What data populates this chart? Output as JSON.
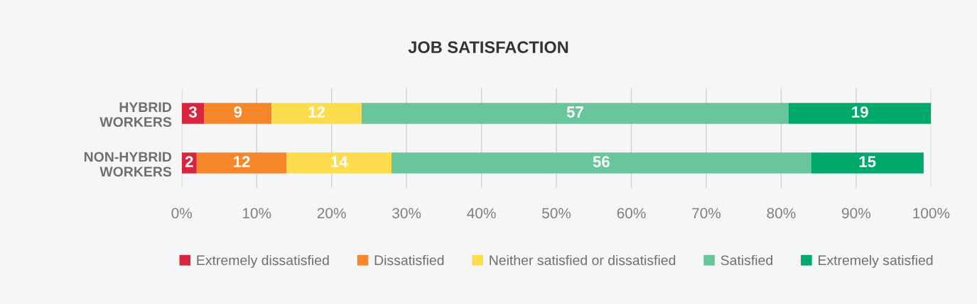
{
  "chart_data": {
    "type": "bar",
    "title": "JOB SATISFACTION",
    "orientation": "horizontal",
    "stacked": true,
    "categories": [
      "HYBRID\nWORKERS",
      "NON-HYBRID\nWORKERS"
    ],
    "series": [
      {
        "name": "Extremely dissatisfied",
        "color": "#d7263d",
        "values": [
          3,
          2
        ]
      },
      {
        "name": "Dissatisfied",
        "color": "#f5862a",
        "values": [
          9,
          12
        ]
      },
      {
        "name": "Neither satisfied or dissatisfied",
        "color": "#fddc4e",
        "values": [
          12,
          14
        ]
      },
      {
        "name": "Satisfied",
        "color": "#68c59c",
        "values": [
          57,
          56
        ]
      },
      {
        "name": "Extremely satisfied",
        "color": "#00a86b",
        "values": [
          19,
          15
        ]
      }
    ],
    "xlim": [
      0,
      100
    ],
    "xticks": [
      {
        "value": 0,
        "label": "0%"
      },
      {
        "value": 10,
        "label": "10%"
      },
      {
        "value": 20,
        "label": "20%"
      },
      {
        "value": 30,
        "label": "30%"
      },
      {
        "value": 40,
        "label": "40%"
      },
      {
        "value": 50,
        "label": "50%"
      },
      {
        "value": 60,
        "label": "60%"
      },
      {
        "value": 70,
        "label": "70%"
      },
      {
        "value": 80,
        "label": "80%"
      },
      {
        "value": 90,
        "label": "90%"
      },
      {
        "value": 100,
        "label": "100%"
      }
    ],
    "data_labels": true,
    "grid": "x",
    "legend": "bottom"
  }
}
